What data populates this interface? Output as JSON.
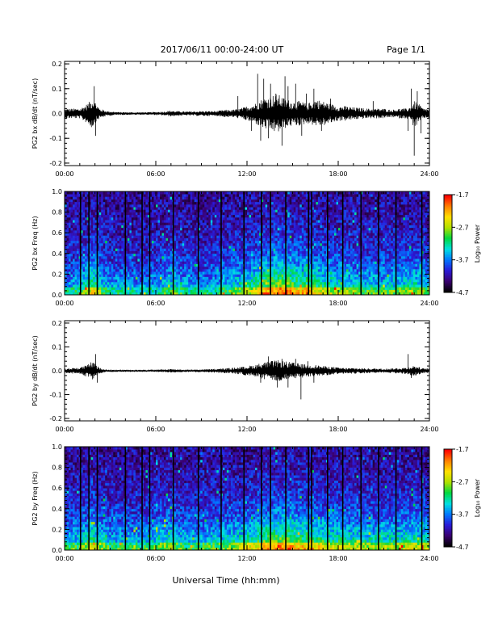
{
  "header": {
    "title": "2017/06/11  00:00-24:00 UT",
    "page": "Page 1/1"
  },
  "xlabel": "Universal Time (hh:mm)",
  "colorbar": {
    "label": "Log₁₀ Power",
    "ticks": [
      "-1.7",
      "-2.7",
      "-3.7",
      "-4.7"
    ],
    "range": [
      -4.7,
      -1.7
    ],
    "colors": [
      "#000000",
      "#3a0070",
      "#2a1ad8",
      "#0078ff",
      "#00e0e0",
      "#00d840",
      "#b0e000",
      "#ffe000",
      "#ff8000",
      "#ff0000"
    ]
  },
  "chart_data": [
    {
      "type": "line",
      "title": "",
      "xlabel": "",
      "ylabel": "PG2 bx dB/dt (nT/sec)",
      "xlim": [
        0,
        24
      ],
      "ylim": [
        -0.21,
        0.21
      ],
      "xticks": [
        "00:00",
        "06:00",
        "12:00",
        "18:00",
        "24:00"
      ],
      "yticks": [
        "0.2",
        "0.1",
        "0.0",
        "-0.1",
        "-0.2"
      ],
      "envelope": {
        "x": [
          0,
          0.5,
          1.0,
          1.5,
          1.8,
          2.0,
          2.3,
          2.8,
          3.5,
          4.5,
          5.5,
          6.5,
          7.0,
          7.3,
          8.0,
          9.0,
          10.0,
          10.5,
          11.0,
          11.5,
          11.8,
          12.0,
          12.5,
          13.0,
          13.5,
          14.0,
          14.5,
          15.0,
          15.5,
          16.0,
          16.5,
          17.0,
          17.5,
          18.0,
          18.5,
          19.0,
          20.0,
          20.5,
          21.0,
          21.5,
          22.0,
          22.5,
          22.8,
          23.0,
          23.3,
          23.6,
          24.0
        ],
        "upper": [
          0.02,
          0.02,
          0.02,
          0.04,
          0.06,
          0.05,
          0.02,
          0.01,
          0.006,
          0.005,
          0.005,
          0.008,
          0.012,
          0.01,
          0.008,
          0.01,
          0.01,
          0.015,
          0.015,
          0.02,
          0.025,
          0.03,
          0.04,
          0.06,
          0.07,
          0.08,
          0.06,
          0.05,
          0.05,
          0.04,
          0.06,
          0.05,
          0.04,
          0.03,
          0.03,
          0.025,
          0.02,
          0.02,
          0.02,
          0.015,
          0.02,
          0.02,
          0.03,
          0.05,
          0.04,
          0.02,
          0.02
        ],
        "lower": [
          -0.02,
          -0.02,
          -0.02,
          -0.04,
          -0.06,
          -0.04,
          -0.02,
          -0.01,
          -0.006,
          -0.005,
          -0.005,
          -0.008,
          -0.012,
          -0.01,
          -0.008,
          -0.01,
          -0.01,
          -0.015,
          -0.015,
          -0.02,
          -0.025,
          -0.03,
          -0.04,
          -0.06,
          -0.07,
          -0.08,
          -0.06,
          -0.05,
          -0.05,
          -0.04,
          -0.05,
          -0.05,
          -0.04,
          -0.03,
          -0.03,
          -0.025,
          -0.02,
          -0.02,
          -0.02,
          -0.015,
          -0.02,
          -0.02,
          -0.03,
          -0.06,
          -0.04,
          -0.02,
          -0.02
        ]
      },
      "spikes": [
        [
          1.95,
          0.11
        ],
        [
          2.05,
          -0.09
        ],
        [
          11.4,
          0.07
        ],
        [
          12.3,
          -0.07
        ],
        [
          12.7,
          0.16
        ],
        [
          12.9,
          -0.11
        ],
        [
          13.1,
          0.14
        ],
        [
          13.4,
          -0.1
        ],
        [
          13.55,
          0.12
        ],
        [
          13.9,
          0.08
        ],
        [
          14.3,
          -0.13
        ],
        [
          14.5,
          0.15
        ],
        [
          14.7,
          0.11
        ],
        [
          15.2,
          0.12
        ],
        [
          15.6,
          -0.09
        ],
        [
          15.9,
          0.08
        ],
        [
          16.4,
          0.1
        ],
        [
          16.9,
          -0.07
        ],
        [
          17.5,
          0.06
        ],
        [
          20.3,
          0.05
        ],
        [
          22.6,
          -0.07
        ],
        [
          22.8,
          0.1
        ],
        [
          23.0,
          -0.17
        ],
        [
          23.2,
          0.09
        ],
        [
          23.45,
          -0.08
        ]
      ]
    },
    {
      "type": "heatmap",
      "title": "",
      "xlabel": "",
      "ylabel": "PG2 bx Freq (Hz)",
      "xlim": [
        0,
        24
      ],
      "ylim": [
        0,
        1.0
      ],
      "xticks": [
        "00:00",
        "06:00",
        "12:00",
        "18:00",
        "24:00"
      ],
      "yticks": [
        "1.0",
        "0.8",
        "0.6",
        "0.4",
        "0.2",
        "0.0"
      ],
      "value_range": [
        -4.7,
        -1.7
      ],
      "columns": 180,
      "rows": 40,
      "activity": {
        "x": [
          0,
          1,
          1.9,
          2.2,
          3,
          4,
          5,
          6,
          7,
          7.3,
          8,
          9,
          10,
          11,
          12,
          12.5,
          13,
          14,
          14.5,
          15,
          15.5,
          16,
          17,
          18,
          19,
          20,
          21,
          22,
          23,
          24
        ],
        "level": [
          0.3,
          0.35,
          0.55,
          0.45,
          0.3,
          0.3,
          0.28,
          0.3,
          0.4,
          0.38,
          0.3,
          0.3,
          0.32,
          0.38,
          0.45,
          0.5,
          0.6,
          0.65,
          0.7,
          0.6,
          0.55,
          0.6,
          0.5,
          0.45,
          0.42,
          0.38,
          0.38,
          0.4,
          0.45,
          0.4
        ]
      },
      "gaps": [
        1.05,
        1.6,
        2.15,
        4.0,
        5.1,
        5.6,
        7.15,
        8.8,
        10.3,
        11.8,
        12.95,
        13.55,
        14.55,
        16.05,
        16.25,
        17.3,
        18.3,
        19.5,
        20.65,
        21.8,
        23.5
      ]
    },
    {
      "type": "line",
      "title": "",
      "xlabel": "",
      "ylabel": "PG2 by dB/dt (nT/sec)",
      "xlim": [
        0,
        24
      ],
      "ylim": [
        -0.21,
        0.21
      ],
      "xticks": [
        "00:00",
        "06:00",
        "12:00",
        "18:00",
        "24:00"
      ],
      "yticks": [
        "0.2",
        "0.1",
        "0.0",
        "-0.1",
        "-0.2"
      ],
      "envelope": {
        "x": [
          0,
          0.5,
          1.0,
          1.5,
          1.8,
          2.0,
          2.3,
          2.8,
          3.5,
          4.5,
          5.5,
          6.5,
          7.0,
          7.3,
          8.0,
          9.0,
          10.0,
          10.5,
          11.0,
          11.5,
          11.8,
          12.0,
          12.5,
          13.0,
          13.5,
          14.0,
          14.5,
          15.0,
          15.5,
          16.0,
          16.5,
          17.0,
          17.5,
          18.0,
          18.5,
          19.0,
          20.0,
          20.5,
          21.0,
          21.5,
          22.0,
          22.5,
          22.8,
          23.0,
          23.3,
          23.6,
          24.0
        ],
        "upper": [
          0.01,
          0.012,
          0.015,
          0.025,
          0.04,
          0.03,
          0.012,
          0.005,
          0.004,
          0.004,
          0.004,
          0.006,
          0.008,
          0.007,
          0.005,
          0.006,
          0.008,
          0.01,
          0.012,
          0.016,
          0.018,
          0.02,
          0.025,
          0.035,
          0.04,
          0.045,
          0.04,
          0.035,
          0.03,
          0.025,
          0.025,
          0.02,
          0.018,
          0.014,
          0.012,
          0.012,
          0.01,
          0.01,
          0.01,
          0.01,
          0.012,
          0.014,
          0.02,
          0.022,
          0.016,
          0.01,
          0.01
        ],
        "lower": [
          -0.01,
          -0.012,
          -0.015,
          -0.025,
          -0.04,
          -0.03,
          -0.012,
          -0.005,
          -0.004,
          -0.004,
          -0.004,
          -0.006,
          -0.008,
          -0.007,
          -0.005,
          -0.006,
          -0.008,
          -0.01,
          -0.012,
          -0.016,
          -0.018,
          -0.02,
          -0.025,
          -0.035,
          -0.04,
          -0.045,
          -0.04,
          -0.035,
          -0.03,
          -0.025,
          -0.025,
          -0.02,
          -0.018,
          -0.014,
          -0.012,
          -0.012,
          -0.01,
          -0.01,
          -0.01,
          -0.01,
          -0.012,
          -0.014,
          -0.02,
          -0.022,
          -0.016,
          -0.01,
          -0.01
        ]
      },
      "spikes": [
        [
          2.05,
          0.07
        ],
        [
          2.15,
          -0.05
        ],
        [
          12.9,
          -0.05
        ],
        [
          13.4,
          0.06
        ],
        [
          14.0,
          -0.07
        ],
        [
          14.3,
          0.05
        ],
        [
          14.7,
          -0.07
        ],
        [
          15.2,
          0.05
        ],
        [
          15.55,
          -0.12
        ],
        [
          16.0,
          0.04
        ],
        [
          16.4,
          -0.05
        ],
        [
          22.6,
          0.07
        ],
        [
          22.8,
          -0.03
        ]
      ]
    },
    {
      "type": "heatmap",
      "title": "",
      "xlabel": "",
      "ylabel": "PG2 by Freq (Hz)",
      "xlim": [
        0,
        24
      ],
      "ylim": [
        0,
        1.0
      ],
      "xticks": [
        "00:00",
        "06:00",
        "12:00",
        "18:00",
        "24:00"
      ],
      "yticks": [
        "1.0",
        "0.8",
        "0.6",
        "0.4",
        "0.2",
        "0.0"
      ],
      "value_range": [
        -4.7,
        -1.7
      ],
      "columns": 180,
      "rows": 40,
      "activity": {
        "x": [
          0,
          1,
          1.9,
          2.2,
          3,
          4,
          5,
          6,
          7,
          7.3,
          8,
          9,
          10,
          11,
          12,
          12.5,
          13,
          14,
          14.5,
          15,
          15.5,
          16,
          17,
          18,
          19,
          20,
          21,
          22,
          23,
          24
        ],
        "level": [
          0.35,
          0.38,
          0.52,
          0.45,
          0.35,
          0.35,
          0.34,
          0.4,
          0.45,
          0.42,
          0.36,
          0.36,
          0.38,
          0.42,
          0.48,
          0.52,
          0.58,
          0.62,
          0.66,
          0.6,
          0.56,
          0.58,
          0.52,
          0.48,
          0.46,
          0.44,
          0.44,
          0.45,
          0.48,
          0.44
        ]
      },
      "gaps": [
        1.05,
        1.6,
        2.15,
        4.0,
        5.1,
        5.6,
        7.15,
        8.8,
        10.3,
        11.8,
        12.95,
        13.55,
        14.55,
        16.05,
        16.25,
        17.3,
        18.3,
        19.5,
        20.65,
        21.8,
        23.5
      ]
    }
  ]
}
